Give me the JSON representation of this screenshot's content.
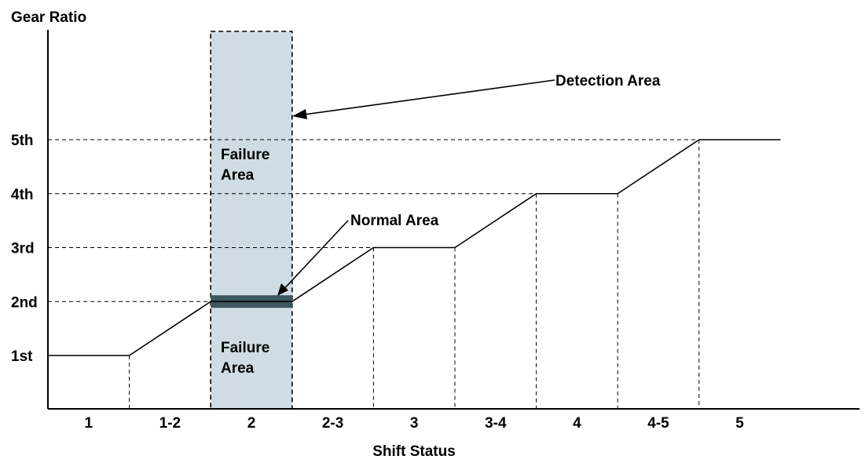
{
  "chart_data": {
    "type": "line",
    "ylabel": "Gear Ratio",
    "xlabel": "Shift Status",
    "y_levels": [
      "1st",
      "2nd",
      "3rd",
      "4th",
      "5th"
    ],
    "x_categories": [
      "1",
      "1-2",
      "2",
      "2-3",
      "3",
      "3-4",
      "4",
      "4-5",
      "5"
    ],
    "line_points": [
      {
        "x": 0,
        "y": 1
      },
      {
        "x": 1,
        "y": 1
      },
      {
        "x": 2,
        "y": 2
      },
      {
        "x": 3,
        "y": 2
      },
      {
        "x": 4,
        "y": 3
      },
      {
        "x": 5,
        "y": 3
      },
      {
        "x": 6,
        "y": 4
      },
      {
        "x": 7,
        "y": 4
      },
      {
        "x": 8,
        "y": 5
      },
      {
        "x": 9,
        "y": 5
      }
    ],
    "detection_area": {
      "label": "Detection Area",
      "x_from": 2,
      "x_to": 3,
      "color": "#cfdce3"
    },
    "normal_area": {
      "label": "Normal Area",
      "level": 2,
      "color": "#3d575e"
    },
    "failure_upper": {
      "line1": "Failure",
      "line2": "Area"
    },
    "failure_lower": {
      "line1": "Failure",
      "line2": "Area"
    },
    "grid": "dashed-guides"
  }
}
